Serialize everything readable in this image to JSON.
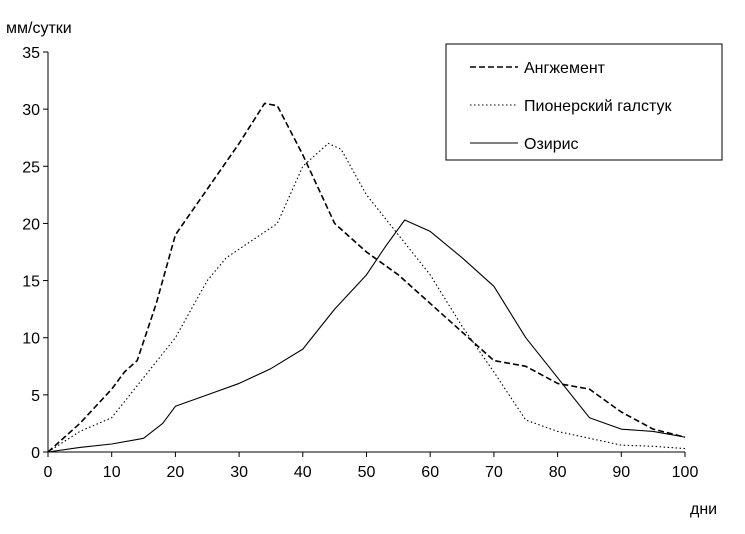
{
  "chart_data": {
    "type": "line",
    "title": "",
    "xlabel": "дни",
    "ylabel": "мм/сутки",
    "xlim": [
      0,
      100
    ],
    "ylim": [
      0,
      35
    ],
    "xticks": [
      0,
      10,
      20,
      30,
      40,
      50,
      60,
      70,
      80,
      90,
      100
    ],
    "yticks": [
      0,
      5,
      10,
      15,
      20,
      25,
      30,
      35
    ],
    "grid": false,
    "legend_position": "top-right",
    "series": [
      {
        "name": "Ангжемент",
        "style": "dashed",
        "x": [
          0,
          5,
          10,
          12,
          14,
          17,
          20,
          25,
          30,
          34,
          36,
          40,
          45,
          50,
          55,
          60,
          65,
          70,
          75,
          80,
          85,
          90,
          95,
          100
        ],
        "y": [
          0,
          2.5,
          5.5,
          7,
          8,
          13,
          19,
          23,
          27,
          30.5,
          30.3,
          26,
          20,
          17.5,
          15.5,
          13,
          10.5,
          8,
          7.5,
          6,
          5.5,
          3.5,
          2,
          1.3
        ]
      },
      {
        "name": "Пионерский галстук",
        "style": "dotted",
        "x": [
          0,
          5,
          10,
          15,
          20,
          25,
          28,
          32,
          36,
          40,
          44,
          46,
          50,
          55,
          60,
          65,
          70,
          75,
          80,
          85,
          90,
          95,
          100
        ],
        "y": [
          0,
          1.8,
          3,
          6.5,
          10,
          15,
          17,
          18.5,
          20,
          25,
          27,
          26.5,
          22.5,
          19,
          15.5,
          11,
          7,
          2.8,
          1.8,
          1.2,
          0.6,
          0.5,
          0.3
        ]
      },
      {
        "name": "Озирис",
        "style": "solid",
        "x": [
          0,
          5,
          10,
          15,
          18,
          20,
          25,
          30,
          35,
          40,
          45,
          50,
          53,
          56,
          60,
          65,
          70,
          75,
          80,
          85,
          90,
          95,
          100
        ],
        "y": [
          0,
          0.4,
          0.7,
          1.2,
          2.5,
          4,
          5,
          6,
          7.3,
          9,
          12.5,
          15.5,
          18,
          20.3,
          19.3,
          17,
          14.5,
          10,
          6.5,
          3,
          2,
          1.8,
          1.3
        ]
      }
    ]
  }
}
